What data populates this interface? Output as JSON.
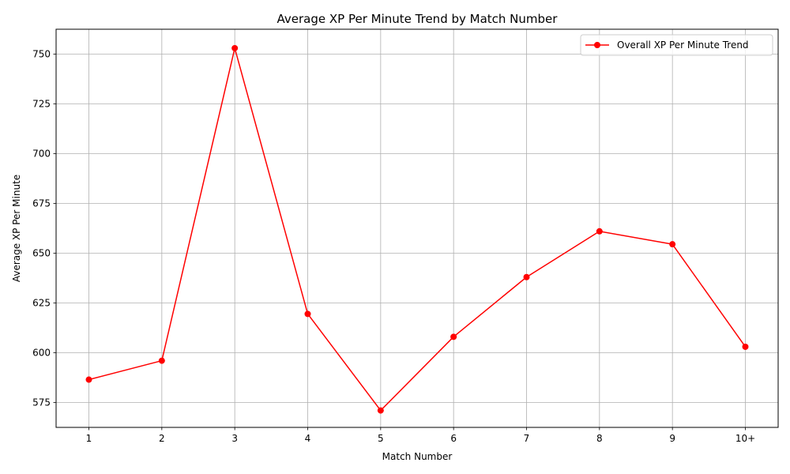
{
  "chart_data": {
    "type": "line",
    "title": "Average XP Per Minute Trend by Match Number",
    "xlabel": "Match Number",
    "ylabel": "Average XP Per Minute",
    "categories": [
      "1",
      "2",
      "3",
      "4",
      "5",
      "6",
      "7",
      "8",
      "9",
      "10+"
    ],
    "series": [
      {
        "name": "Overall XP Per Minute Trend",
        "color": "#ff0000",
        "marker": "circle",
        "values": [
          586.5,
          596.0,
          753.0,
          619.5,
          571.0,
          608.0,
          638.0,
          661.0,
          654.5,
          603.0
        ]
      }
    ],
    "ylim": [
      562.5,
      762.5
    ],
    "yticks": [
      575,
      600,
      625,
      650,
      675,
      700,
      725,
      750
    ],
    "grid": true,
    "legend_position": "top-right"
  }
}
